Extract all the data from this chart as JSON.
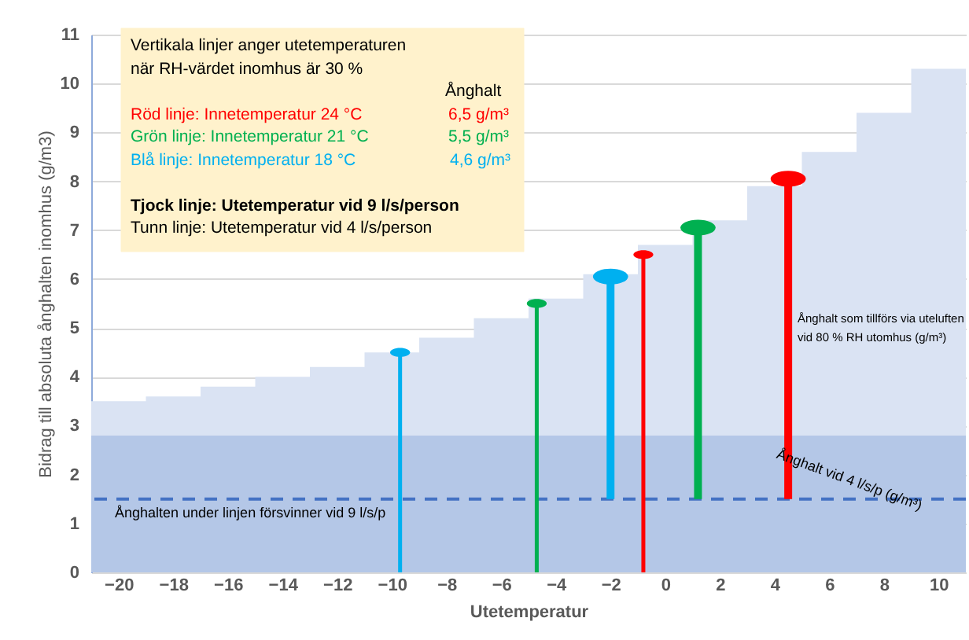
{
  "chart_data": {
    "type": "area",
    "xlabel": "Utetemperatur",
    "ylabel": "Bidrag till absoluta ånghalten inomhus (g/m3)",
    "xlim": [
      -21,
      11
    ],
    "ylim": [
      0,
      11
    ],
    "xticks": [
      -20,
      -18,
      -16,
      -14,
      -12,
      -10,
      -8,
      -6,
      -4,
      -2,
      0,
      2,
      4,
      6,
      8,
      10
    ],
    "yticks": [
      0,
      1,
      2,
      3,
      4,
      5,
      6,
      7,
      8,
      9,
      10,
      11
    ],
    "grid": "y",
    "series": [
      {
        "color": "#dae3f3",
        "x": [
          -21,
          -19,
          -19,
          -17,
          -17,
          -15,
          -15,
          -13,
          -13,
          -11,
          -11,
          -9,
          -9,
          -7,
          -7,
          -5,
          -5,
          -3,
          -3,
          -1,
          -1,
          1,
          1,
          3,
          3,
          5,
          5,
          7,
          7,
          9,
          9,
          11
        ],
        "values": [
          3.5,
          3.5,
          3.6,
          3.6,
          3.8,
          3.8,
          4.0,
          4.0,
          4.2,
          4.2,
          4.5,
          4.5,
          4.8,
          4.8,
          5.2,
          5.2,
          5.6,
          5.6,
          6.1,
          6.1,
          6.7,
          6.7,
          7.2,
          7.2,
          7.9,
          7.9,
          8.6,
          8.6,
          9.4,
          9.4,
          10.3,
          10.3
        ]
      },
      {
        "type": "scatter",
        "marker": "circle",
        "color": "#00b0f0",
        "x": [
          -9.7
        ],
        "values": [
          4.5
        ],
        "errors": [
          [
            0,
            4.5
          ]
        ]
      },
      {
        "type": "scatter",
        "marker": "circle",
        "color": "#00b050",
        "x": [
          -4.7
        ],
        "values": [
          5.5
        ],
        "errors": [
          [
            0,
            5.5
          ]
        ]
      },
      {
        "type": "scatter",
        "marker": "circle",
        "color": "#00b0f0",
        "x": [
          -2.0
        ],
        "values": [
          6.05
        ],
        "errors": [
          [
            1.5,
            6.05
          ]
        ]
      },
      {
        "type": "scatter",
        "marker": "circle",
        "color": "#ff0000",
        "x": [
          -0.8
        ],
        "values": [
          6.5
        ],
        "errors": [
          [
            0,
            6.5
          ]
        ]
      },
      {
        "type": "scatter",
        "marker": "circle",
        "color": "#00b050",
        "x": [
          1.2
        ],
        "values": [
          7.05
        ],
        "errors": [
          [
            1.5,
            7.05
          ]
        ]
      },
      {
        "type": "scatter",
        "marker": "circle",
        "color": "#ff0000",
        "x": [
          4.5
        ],
        "values": [
          8.05
        ],
        "errors": [
          [
            1.5,
            8.05
          ]
        ]
      }
    ],
    "bands": [
      {
        "axis": "y",
        "from": 0,
        "to": 2.8,
        "label": "Ånghalt vid 4 l/s/p (g/m³)",
        "color": "#b4c7e7"
      }
    ],
    "ref_lines": [
      {
        "axis": "y",
        "value": 1.5,
        "label": "Ånghalten under linjen försvinner vid 9 l/s/p",
        "color": "#4472c4",
        "line_style": "dashed"
      }
    ],
    "annotations": [
      "Vertikala linjer anger utetemperaturen",
      "när RH-värdet inomhus är 30 %",
      "Ånghalt",
      "Röd linje:   Innetemperatur  24 °C",
      "6,5 g/m³",
      "Grön linje: Innetemperatur  21 °C",
      "5,5 g/m³",
      "Blå linje:     Innetemperatur  18 °C",
      "4,6 g/m³",
      "Tjock linje: Utetemperatur vid 9 l/s/person",
      "Tunn linje:   Utetemperatur vid 4 l/s/person",
      "Ånghalt som tillförs via uteluften",
      "vid 80 % RH utomhus (g/m³)"
    ]
  }
}
